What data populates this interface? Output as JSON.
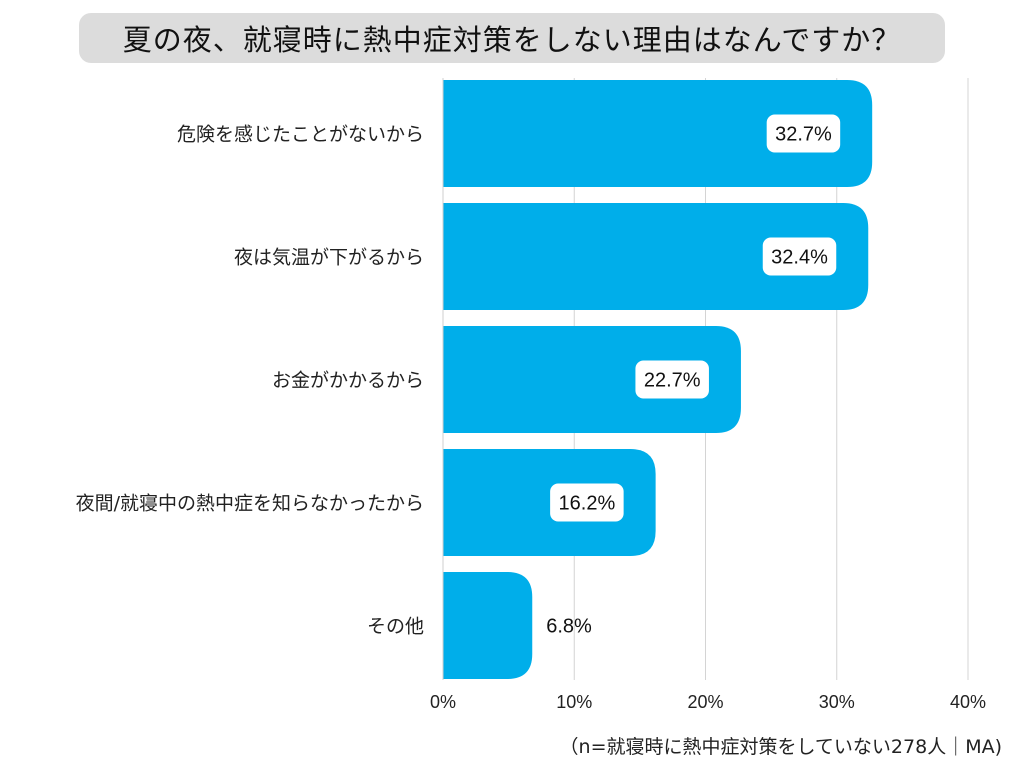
{
  "chart_data": {
    "type": "bar",
    "orientation": "horizontal",
    "title": "夏の夜、就寝時に熱中症対策をしない理由はなんですか？",
    "categories": [
      "危険を感じたことがないから",
      "夜は気温が下がるから",
      "お金がかかるから",
      "夜間/就寝中の熱中症を知らなかったから",
      "その他"
    ],
    "values": [
      32.7,
      32.4,
      22.7,
      16.2,
      6.8
    ],
    "value_labels": [
      "32.7%",
      "32.4%",
      "22.7%",
      "16.2%",
      "6.8%"
    ],
    "xlim": [
      0,
      40
    ],
    "xticks": [
      0,
      10,
      20,
      30,
      40
    ],
    "xtick_labels": [
      "0%",
      "10%",
      "20%",
      "30%",
      "40%"
    ],
    "xlabel": "",
    "ylabel": "",
    "grid": true,
    "bar_color": "#00aeea",
    "note": "（n=就寝時に熱中症対策をしていない278人｜MA)"
  }
}
